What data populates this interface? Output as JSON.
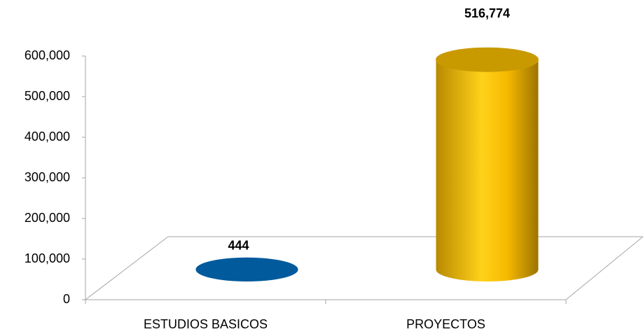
{
  "chart_data": {
    "type": "bar3d",
    "categories": [
      "ESTUDIOS BASICOS",
      "PROYECTOS"
    ],
    "values": [
      444,
      516774
    ],
    "value_labels": [
      "444",
      "516,774"
    ],
    "colors": [
      "#005a9c",
      "#f2b600"
    ],
    "ylim": [
      0,
      600000
    ],
    "yticks": [
      0,
      {
        "value": 100000,
        "label": "100,000"
      },
      {
        "value": 200000,
        "label": "200,000"
      },
      {
        "value": 300000,
        "label": "300,000"
      },
      {
        "value": 400000,
        "label": "400,000"
      },
      {
        "value": 500000,
        "label": "500,000"
      },
      {
        "value": 600000,
        "label": "600,000"
      }
    ]
  }
}
